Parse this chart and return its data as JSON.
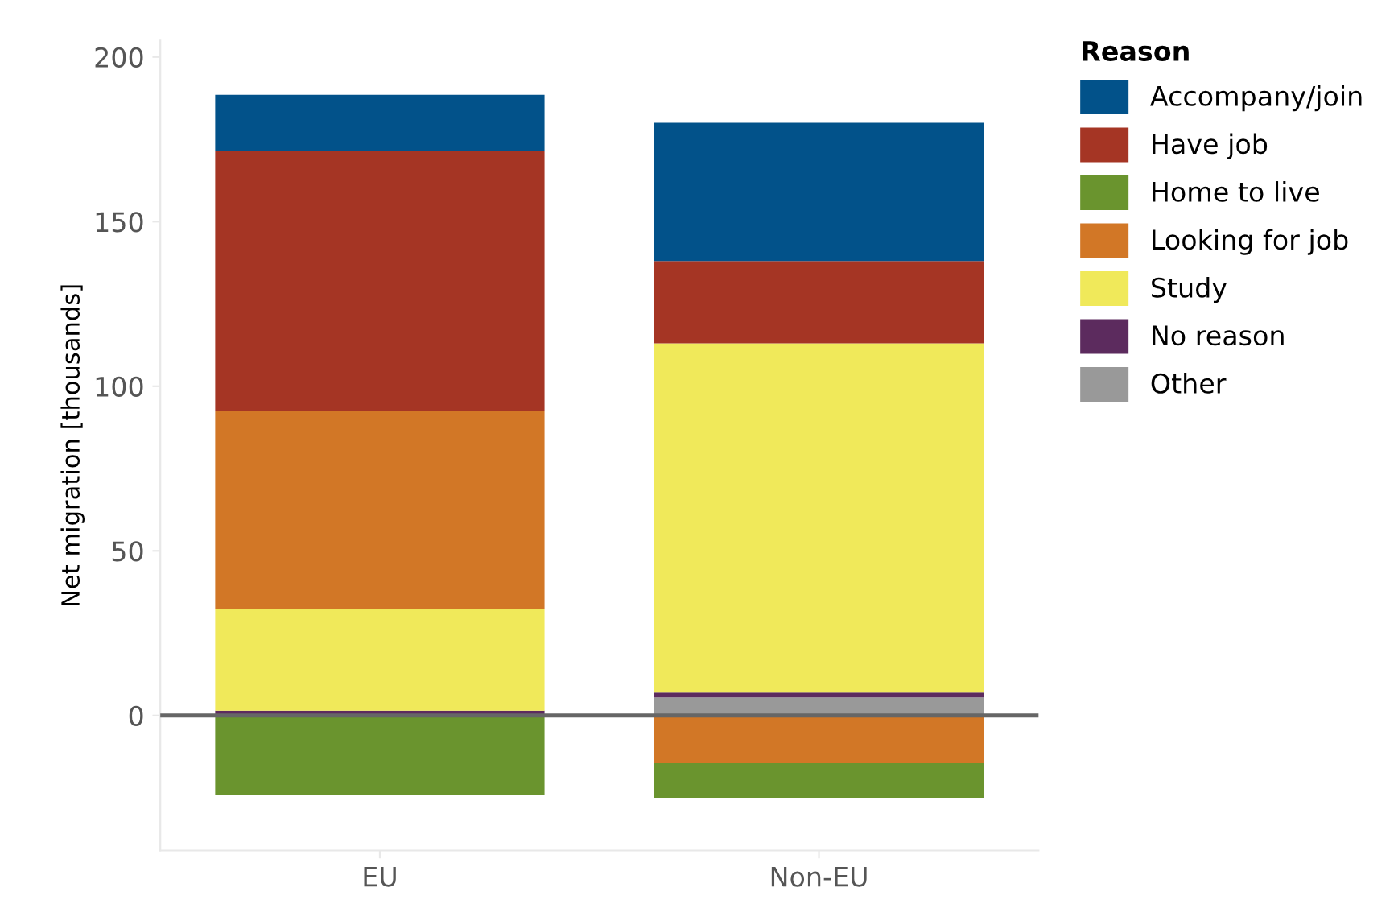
{
  "chart_data": {
    "type": "bar",
    "stacked": true,
    "categories": [
      "EU",
      "Non-EU"
    ],
    "ylabel": "Net migration [thousands]",
    "legend_title": "Reason",
    "legend": "right",
    "grid": false,
    "ylim": [
      -41,
      205
    ],
    "yticks": [
      0,
      50,
      100,
      150,
      200
    ],
    "ref_lines": [
      {
        "axis": "y",
        "value": 0,
        "color": "#666666"
      }
    ],
    "series": [
      {
        "name": "Other",
        "color": "#999999",
        "values": [
          0,
          5.5
        ]
      },
      {
        "name": "No reason",
        "color": "#5c2b5e",
        "values": [
          1.5,
          1.5
        ]
      },
      {
        "name": "Study",
        "color": "#f0e95a",
        "values": [
          31,
          106
        ]
      },
      {
        "name": "Looking for job",
        "color": "#d27726",
        "values": [
          60,
          -14.5
        ]
      },
      {
        "name": "Home to live",
        "color": "#6a942e",
        "values": [
          -24,
          -10.5
        ]
      },
      {
        "name": "Have job",
        "color": "#a53524",
        "values": [
          79,
          25
        ]
      },
      {
        "name": "Accompany/join",
        "color": "#02528a",
        "values": [
          17,
          42
        ]
      }
    ]
  }
}
